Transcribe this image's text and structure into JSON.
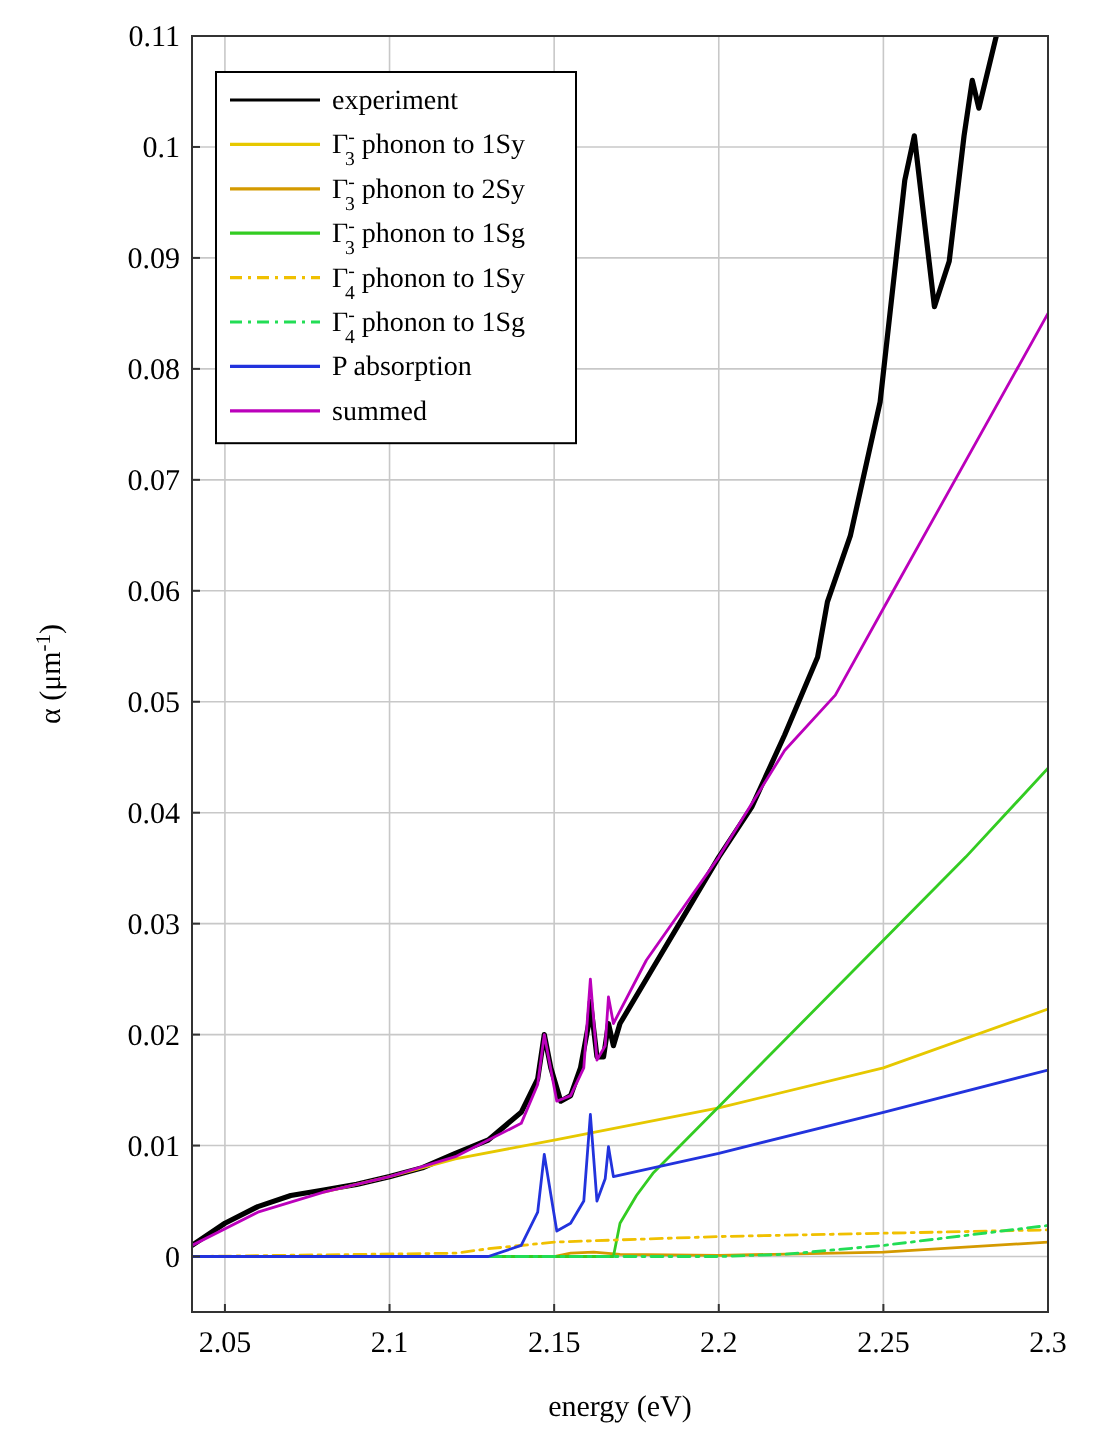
{
  "chart_data": {
    "type": "line",
    "xlabel": "energy (eV)",
    "ylabel": "α (μm$^{-1}$)",
    "xlim": [
      2.04,
      2.3
    ],
    "xticks": [
      2.05,
      2.1,
      2.15,
      2.2,
      2.25,
      2.3
    ],
    "ylim": [
      -0.005,
      0.11
    ],
    "yticks": [
      0,
      0.01,
      0.02,
      0.03,
      0.04,
      0.05,
      0.06,
      0.07,
      0.08,
      0.09,
      0.1,
      0.11
    ],
    "grid": true,
    "legend": "top left",
    "series": [
      {
        "name": "experiment",
        "color": "#000000",
        "x": [
          2.04,
          2.05,
          2.06,
          2.07,
          2.08,
          2.09,
          2.1,
          2.11,
          2.12,
          2.13,
          2.14,
          2.145,
          2.147,
          2.149,
          2.152,
          2.155,
          2.158,
          2.1605,
          2.161,
          2.163,
          2.165,
          2.1665,
          2.168,
          2.17,
          2.18,
          2.19,
          2.2,
          2.21,
          2.22,
          2.23,
          2.233,
          2.24,
          2.249,
          2.2565,
          2.2594,
          2.2655,
          2.27,
          2.2745,
          2.277,
          2.279,
          2.2843
        ],
        "values": [
          0.001,
          0.003,
          0.0045,
          0.0055,
          0.006,
          0.0065,
          0.0072,
          0.008,
          0.0093,
          0.0105,
          0.013,
          0.016,
          0.02,
          0.017,
          0.014,
          0.0145,
          0.017,
          0.021,
          0.023,
          0.018,
          0.018,
          0.021,
          0.019,
          0.021,
          0.026,
          0.031,
          0.036,
          0.0405,
          0.047,
          0.054,
          0.059,
          0.065,
          0.077,
          0.097,
          0.101,
          0.0856,
          0.0897,
          0.101,
          0.106,
          0.1035,
          0.11
        ]
      },
      {
        "name": "Γ$^{-}$$_{3}$ phonon to 1Sy",
        "color": "#e6c800",
        "x": [
          2.08,
          2.1,
          2.12,
          2.15,
          2.2,
          2.25,
          2.3
        ],
        "values": [
          0.0058,
          0.0072,
          0.0088,
          0.0105,
          0.0134,
          0.017,
          0.0223
        ]
      },
      {
        "name": "Γ$^{-}$$_{3}$ phonon to 2Sy",
        "color": "#d49a00",
        "x": [
          2.04,
          2.15,
          2.155,
          2.162,
          2.17,
          2.2,
          2.25,
          2.3
        ],
        "values": [
          0,
          0,
          0.0003,
          0.0004,
          0.0002,
          0.0001,
          0.0004,
          0.0013
        ]
      },
      {
        "name": "Γ$^{-}$$_{3}$ phonon to 1Sg",
        "color": "#33cc22",
        "x": [
          2.04,
          2.168,
          2.17,
          2.175,
          2.18,
          2.19,
          2.2,
          2.225,
          2.25,
          2.275,
          2.3
        ],
        "values": [
          0,
          0,
          0.003,
          0.0055,
          0.0075,
          0.0105,
          0.0135,
          0.021,
          0.0285,
          0.036,
          0.044
        ]
      },
      {
        "name": "Γ$^{-}$$_{4}$ phonon to 1Sy",
        "color": "#f0c000",
        "line_style": "dashdot",
        "x": [
          2.04,
          2.12,
          2.13,
          2.15,
          2.2,
          2.25,
          2.3
        ],
        "values": [
          0,
          0.0003,
          0.0007,
          0.0013,
          0.0018,
          0.0021,
          0.0024
        ]
      },
      {
        "name": "Γ$^{-}$$_{4}$ phonon to 1Sg",
        "color": "#22dd55",
        "line_style": "dashdot",
        "x": [
          2.04,
          2.168,
          2.2,
          2.22,
          2.25,
          2.3
        ],
        "values": [
          0,
          0,
          0,
          0.0002,
          0.001,
          0.0028
        ]
      },
      {
        "name": "P absorption",
        "color": "#2233dd",
        "x": [
          2.04,
          2.13,
          2.14,
          2.145,
          2.147,
          2.1508,
          2.155,
          2.159,
          2.161,
          2.163,
          2.1655,
          2.1665,
          2.168,
          2.2,
          2.25,
          2.3
        ],
        "values": [
          0,
          0,
          0.001,
          0.004,
          0.0092,
          0.0023,
          0.003,
          0.005,
          0.0128,
          0.005,
          0.007,
          0.0099,
          0.0072,
          0.0093,
          0.013,
          0.0168
        ]
      },
      {
        "name": "summed",
        "color": "#bb00bb",
        "x": [
          2.04,
          2.06,
          2.08,
          2.1,
          2.12,
          2.14,
          2.145,
          2.147,
          2.1508,
          2.155,
          2.159,
          2.161,
          2.163,
          2.1655,
          2.1665,
          2.168,
          2.178,
          2.2,
          2.22,
          2.2354,
          2.25,
          2.3
        ],
        "values": [
          0.001,
          0.004,
          0.0058,
          0.0072,
          0.009,
          0.012,
          0.0155,
          0.02,
          0.014,
          0.0145,
          0.017,
          0.025,
          0.0177,
          0.019,
          0.0234,
          0.021,
          0.0267,
          0.036,
          0.0456,
          0.0506,
          0.0584,
          0.085
        ]
      }
    ]
  }
}
